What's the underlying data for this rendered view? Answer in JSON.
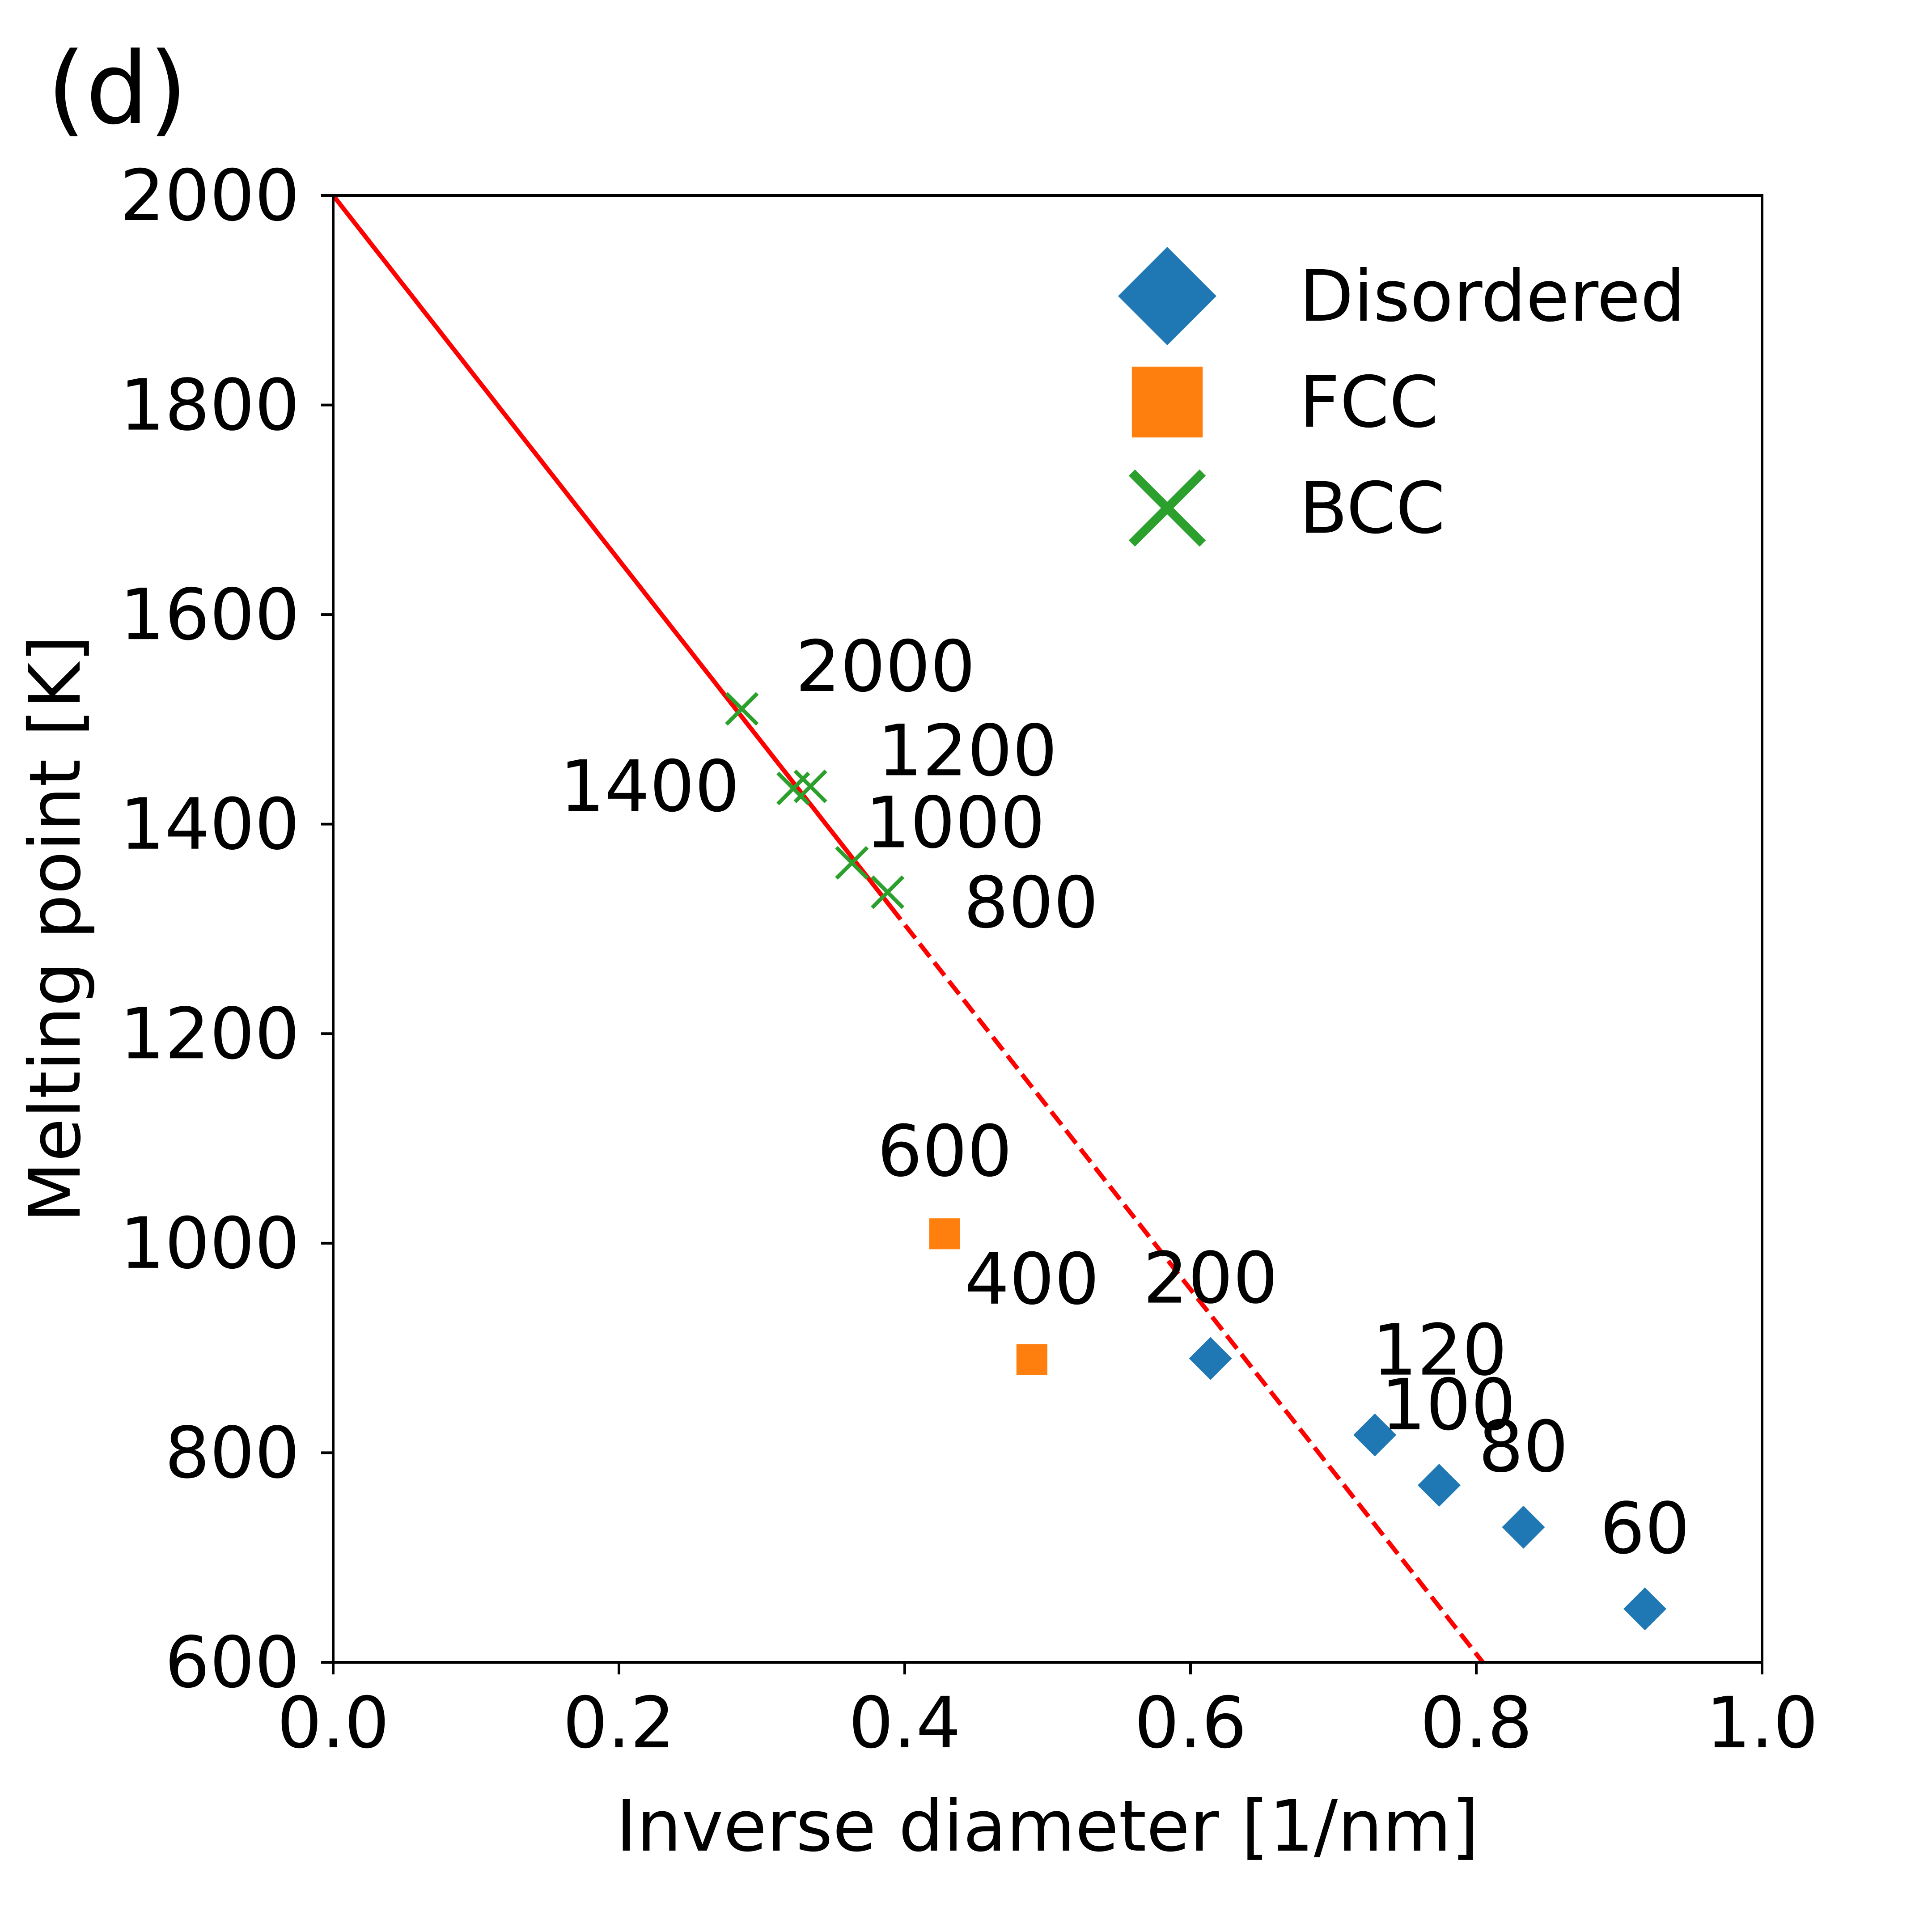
{
  "panel_label": "(d)",
  "chart_data": {
    "type": "scatter",
    "title": "",
    "xlabel": "Inverse diameter [1/nm]",
    "ylabel": "Melting point [K]",
    "xlim": [
      0.0,
      1.0
    ],
    "ylim": [
      600,
      2000
    ],
    "xticks": [
      0.0,
      0.2,
      0.4,
      0.6,
      0.8,
      1.0
    ],
    "xtick_labels": [
      "0.0",
      "0.2",
      "0.4",
      "0.6",
      "0.8",
      "1.0"
    ],
    "yticks": [
      600,
      800,
      1000,
      1200,
      1400,
      1600,
      1800,
      2000
    ],
    "ytick_labels": [
      "600",
      "800",
      "1000",
      "1200",
      "1400",
      "1600",
      "1800",
      "2000"
    ],
    "grid": false,
    "legend_position": "top-right",
    "series": [
      {
        "name": "Disordered",
        "marker": "diamond",
        "color": "#1f77b4",
        "points": [
          {
            "x": 0.614,
            "y": 890,
            "label": "200"
          },
          {
            "x": 0.729,
            "y": 817,
            "label": "120"
          },
          {
            "x": 0.774,
            "y": 769,
            "label": "100"
          },
          {
            "x": 0.833,
            "y": 729,
            "label": "80"
          },
          {
            "x": 0.918,
            "y": 651,
            "label": "60"
          }
        ]
      },
      {
        "name": "FCC",
        "marker": "square",
        "color": "#ff7f0e",
        "points": [
          {
            "x": 0.428,
            "y": 1009,
            "label": "600"
          },
          {
            "x": 0.489,
            "y": 889,
            "label": "400"
          }
        ]
      },
      {
        "name": "BCC",
        "marker": "x",
        "color": "#2ca02c",
        "points": [
          {
            "x": 0.286,
            "y": 1510,
            "label": "2000"
          },
          {
            "x": 0.334,
            "y": 1436,
            "label": "1200"
          },
          {
            "x": 0.322,
            "y": 1434,
            "label": "1400"
          },
          {
            "x": 0.363,
            "y": 1363,
            "label": "1000"
          },
          {
            "x": 0.388,
            "y": 1335,
            "label": "800"
          }
        ]
      }
    ],
    "fit_line": {
      "color": "#ff0000",
      "intercept": 2000,
      "slope": -1740,
      "solid_range": [
        0.0,
        0.39
      ],
      "dashed_range": [
        0.39,
        0.805
      ]
    }
  }
}
